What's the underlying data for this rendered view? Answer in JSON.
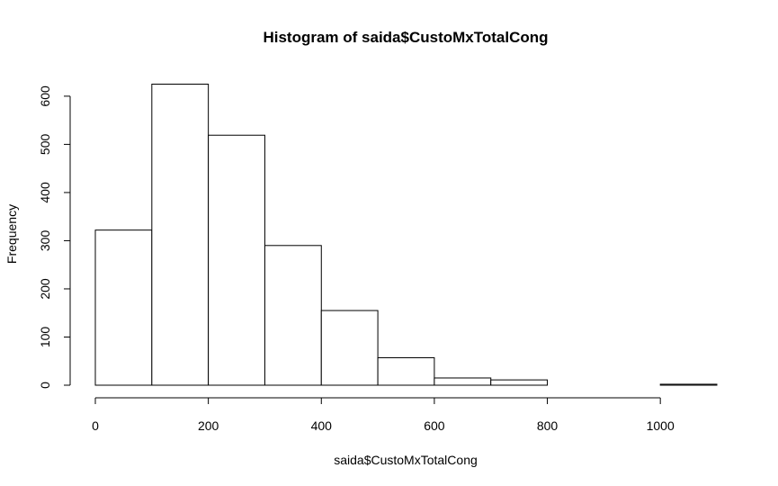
{
  "chart_data": {
    "type": "bar",
    "title": "Histogram of saida$CustoMxTotalCong",
    "xlabel": "saida$CustoMxTotalCong",
    "ylabel": "Frequency",
    "bins": [
      {
        "from": 0,
        "to": 100,
        "count": 322
      },
      {
        "from": 100,
        "to": 200,
        "count": 625
      },
      {
        "from": 200,
        "to": 300,
        "count": 519
      },
      {
        "from": 300,
        "to": 400,
        "count": 290
      },
      {
        "from": 400,
        "to": 500,
        "count": 155
      },
      {
        "from": 500,
        "to": 600,
        "count": 57
      },
      {
        "from": 600,
        "to": 700,
        "count": 15
      },
      {
        "from": 700,
        "to": 800,
        "count": 11
      },
      {
        "from": 800,
        "to": 900,
        "count": 0
      },
      {
        "from": 900,
        "to": 1000,
        "count": 0
      },
      {
        "from": 1000,
        "to": 1100,
        "count": 2
      }
    ],
    "xticks": [
      0,
      200,
      400,
      600,
      800,
      1000
    ],
    "yticks": [
      0,
      100,
      200,
      300,
      400,
      500,
      600
    ],
    "xlim": [
      0,
      1100
    ],
    "ylim": [
      0,
      625
    ],
    "grid": false,
    "colors": {
      "fill": "#ffffff",
      "stroke": "#000000"
    }
  }
}
